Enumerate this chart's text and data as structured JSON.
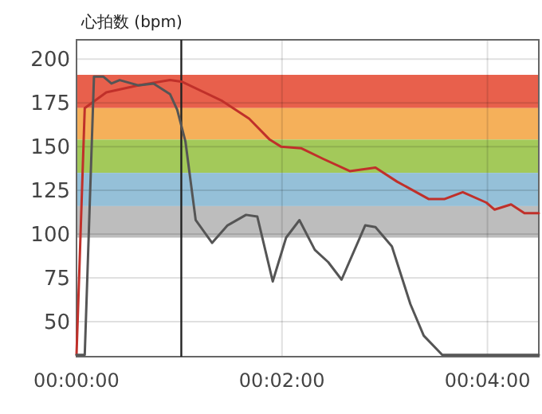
{
  "chart_data": {
    "type": "line",
    "ylabel": "心拍数 (bpm)",
    "xlim": [
      0,
      4.5
    ],
    "ylim": [
      30,
      211
    ],
    "xticks": [
      {
        "value": 0,
        "label": "00:00:00"
      },
      {
        "value": 2,
        "label": "00:02:00"
      },
      {
        "value": 4,
        "label": "00:04:00"
      }
    ],
    "yticks": [
      50,
      75,
      100,
      125,
      150,
      175,
      200
    ],
    "grid": true,
    "bands": [
      {
        "axis": "y",
        "from": 172,
        "to": 191,
        "color": "#e8604c"
      },
      {
        "axis": "y",
        "from": 154,
        "to": 172,
        "color": "#f5b05a"
      },
      {
        "axis": "y",
        "from": 135,
        "to": 154,
        "color": "#a3c95a"
      },
      {
        "axis": "y",
        "from": 116,
        "to": 135,
        "color": "#95c0d8"
      },
      {
        "axis": "y",
        "from": 98,
        "to": 116,
        "color": "#bdbdbd"
      }
    ],
    "ref_lines": [
      {
        "axis": "x",
        "value": 1.02,
        "color": "#222222"
      }
    ],
    "series": [
      {
        "color": "#c0302a",
        "x": [
          0,
          0.08,
          0.29,
          0.6,
          0.91,
          1.03,
          1.42,
          1.68,
          1.88,
          1.99,
          2.19,
          2.4,
          2.66,
          2.91,
          3.12,
          3.43,
          3.58,
          3.76,
          3.99,
          4.07,
          4.23,
          4.36,
          4.5
        ],
        "values": [
          31,
          172,
          181,
          185,
          188,
          187,
          176,
          166,
          154,
          150,
          149,
          143,
          136,
          138,
          130,
          120,
          120,
          124,
          118,
          114,
          117,
          112,
          112
        ]
      },
      {
        "color": "#555555",
        "x": [
          0,
          0.08,
          0.17,
          0.26,
          0.34,
          0.42,
          0.6,
          0.75,
          0.91,
          0.98,
          1.06,
          1.16,
          1.32,
          1.47,
          1.65,
          1.76,
          1.91,
          2.04,
          2.17,
          2.32,
          2.45,
          2.58,
          2.81,
          2.91,
          3.07,
          3.25,
          3.38,
          3.56,
          4.5
        ],
        "values": [
          31,
          31,
          190,
          190,
          186,
          188,
          185,
          186,
          180,
          171,
          153,
          108,
          95,
          105,
          111,
          110,
          73,
          98,
          108,
          91,
          84,
          74,
          105,
          104,
          93,
          60,
          42,
          31,
          31
        ]
      }
    ]
  }
}
